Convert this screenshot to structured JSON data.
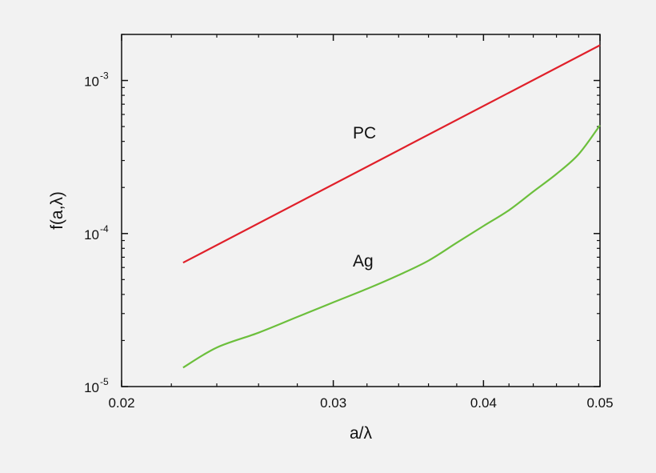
{
  "chart_data": {
    "type": "line",
    "xlabel": "a/λ",
    "ylabel": "f(a,λ)",
    "xscale": "log",
    "yscale": "log",
    "xlim": [
      0.02,
      0.05
    ],
    "ylim": [
      1e-05,
      0.002
    ],
    "xticks": [
      {
        "value": 0.02,
        "label": "0.02"
      },
      {
        "value": 0.03,
        "label": "0.03"
      },
      {
        "value": 0.04,
        "label": "0.04"
      },
      {
        "value": 0.05,
        "label": "0.05"
      }
    ],
    "yticks": [
      {
        "value": 1e-05,
        "base": "10",
        "exp": "-5"
      },
      {
        "value": 0.0001,
        "base": "10",
        "exp": "-4"
      },
      {
        "value": 0.001,
        "base": "10",
        "exp": "-3"
      }
    ],
    "grid": false,
    "series": [
      {
        "name": "PC",
        "color": "#e0202a",
        "x": [
          0.0225,
          0.05
        ],
        "y": [
          6.45e-05,
          0.0017
        ]
      },
      {
        "name": "Ag",
        "color": "#6cbf3c",
        "x": [
          0.0225,
          0.024,
          0.026,
          0.028,
          0.03,
          0.032,
          0.034,
          0.036,
          0.038,
          0.04,
          0.042,
          0.044,
          0.046,
          0.048,
          0.05
        ],
        "y": [
          1.33e-05,
          1.8e-05,
          2.25e-05,
          2.85e-05,
          3.55e-05,
          4.35e-05,
          5.35e-05,
          6.65e-05,
          8.7e-05,
          0.000112,
          0.000142,
          0.000188,
          0.000245,
          0.00033,
          0.00051
        ]
      }
    ]
  }
}
